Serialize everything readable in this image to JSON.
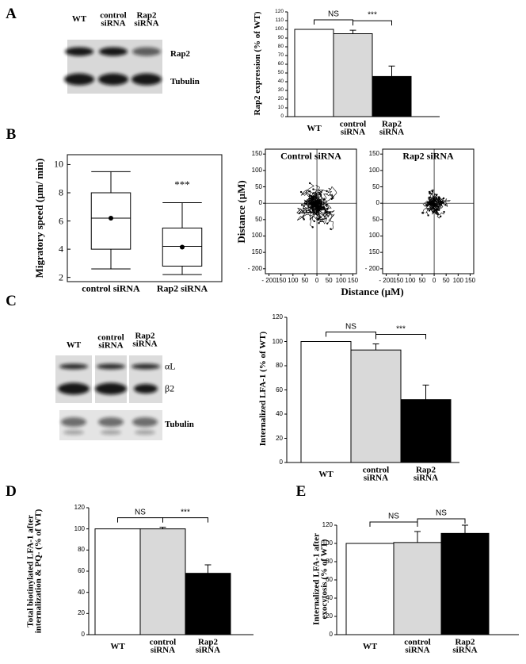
{
  "panel_labels": [
    "A",
    "B",
    "C",
    "D",
    "E"
  ],
  "blots": [
    {
      "lanes": [
        "WT",
        "control siRNA",
        "Rap2 siRNA"
      ],
      "rows": [
        "Rap2",
        "Tubulin"
      ]
    },
    {
      "lanes": [
        "WT",
        "control siRNA",
        "Rap2 siRNA"
      ],
      "rows": [
        "αL",
        "β2",
        "Tubulin"
      ]
    }
  ],
  "chart_data": [
    {
      "type": "bar",
      "y_label": "Rap2 expression (% of WT)",
      "categories": [
        "WT",
        "control siRNA",
        "Rap2 siRNA"
      ],
      "values": [
        100,
        95,
        46
      ],
      "errors": [
        null,
        4,
        12
      ],
      "colors": [
        "#ffffff",
        "#d9d9d9",
        "#000000"
      ],
      "annotations": [
        "NS",
        "***"
      ],
      "ylim": [
        0,
        120
      ],
      "yticks": [
        0,
        10,
        20,
        30,
        40,
        50,
        60,
        70,
        80,
        90,
        100,
        110,
        120
      ]
    },
    {
      "type": "box",
      "y_label": "Migratory speed (µm/ min)",
      "categories": [
        "control siRNA",
        "Rap2 siRNA"
      ],
      "whisker_low": [
        2.6,
        2.2
      ],
      "q1": [
        4.0,
        2.8
      ],
      "median": [
        6.2,
        4.2
      ],
      "q3": [
        8.0,
        5.5
      ],
      "whisker_high": [
        9.5,
        7.3
      ],
      "mean": [
        6.2,
        4.15
      ],
      "annotation": "***",
      "ylim": [
        1.7,
        10.7
      ],
      "yticks": [
        2,
        4,
        6,
        8,
        10
      ]
    },
    {
      "type": "trajectory",
      "title": "Control siRNA",
      "x_label": "Distance (µM)",
      "y_label": "Distance (µM)",
      "xlim": [
        -215,
        165
      ],
      "ylim": [
        -215,
        165
      ],
      "xticks": [
        {
          "value": -200,
          "label": "- 200"
        },
        {
          "value": -150,
          "label": "150"
        },
        {
          "value": -100,
          "label": "100"
        },
        {
          "value": -50,
          "label": "50"
        },
        0,
        50,
        100,
        150
      ],
      "yticks": [
        {
          "value": -200,
          "label": "- 200"
        },
        {
          "value": -150,
          "label": "150"
        },
        {
          "value": -100,
          "label": "100"
        },
        {
          "value": -50,
          "label": "50"
        },
        0,
        50,
        100,
        150
      ]
    },
    {
      "type": "trajectory",
      "title": "Rap2 siRNA",
      "xlim": [
        -215,
        165
      ],
      "ylim": [
        -215,
        165
      ],
      "xticks": [
        {
          "value": -200,
          "label": "- 200"
        },
        {
          "value": -150,
          "label": "150"
        },
        {
          "value": -100,
          "label": "100"
        },
        {
          "value": -50,
          "label": "50"
        },
        0,
        50,
        100,
        150
      ],
      "yticks": [
        {
          "value": -200,
          "label": "- 200"
        },
        {
          "value": -150,
          "label": "150"
        },
        {
          "value": -100,
          "label": "100"
        },
        {
          "value": -50,
          "label": "50"
        },
        0,
        50,
        100,
        150
      ]
    },
    {
      "type": "bar",
      "y_label": "Internalized LFA-1 (% of WT)",
      "categories": [
        "WT",
        "control siRNA",
        "Rap2 siRNA"
      ],
      "values": [
        100,
        93,
        52
      ],
      "errors": [
        null,
        5,
        12
      ],
      "colors": [
        "#ffffff",
        "#d9d9d9",
        "#000000"
      ],
      "annotations": [
        "NS",
        "***"
      ],
      "ylim": [
        0,
        120
      ],
      "yticks": [
        0,
        20,
        40,
        60,
        80,
        100,
        120
      ]
    },
    {
      "type": "bar",
      "y_label": "Total biotinylated LFA-1 after internalization & PQ- (% of WT)",
      "categories": [
        "WT",
        "control siRNA",
        "Rap2 siRNA"
      ],
      "values": [
        100,
        100,
        58
      ],
      "errors": [
        null,
        1.5,
        8
      ],
      "colors": [
        "#ffffff",
        "#d9d9d9",
        "#000000"
      ],
      "annotations": [
        "NS",
        "***"
      ],
      "ylim": [
        0,
        120
      ],
      "yticks": [
        0,
        20,
        40,
        60,
        80,
        100,
        120
      ]
    },
    {
      "type": "bar",
      "y_label": "Internalized LFA-1 after exocytosis (% of WT)",
      "categories": [
        "WT",
        "control siRNA",
        "Rap2 siRNA"
      ],
      "values": [
        100,
        101,
        111
      ],
      "errors": [
        null,
        12,
        9
      ],
      "colors": [
        "#ffffff",
        "#d9d9d9",
        "#000000"
      ],
      "annotations": [
        "NS",
        "NS"
      ],
      "ylim": [
        0,
        120
      ],
      "yticks": [
        0,
        20,
        40,
        60,
        80,
        100,
        120
      ]
    }
  ]
}
